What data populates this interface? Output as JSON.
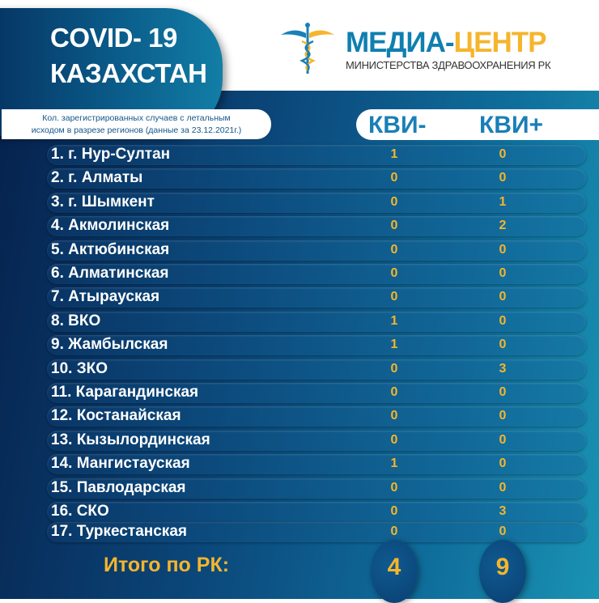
{
  "header": {
    "title_line1": "COVID- 19",
    "title_line2": "КАЗАХСТАН",
    "brand_part1": "МЕДИА-",
    "brand_part2": "ЦЕНТР",
    "brand_sub": "МИНИСТЕРСТВА ЗДРАВООХРАНЕНИЯ РК",
    "logo_icon": "caduceus-icon"
  },
  "note": {
    "line1": "Кол. зарегистрированных случаев с летальным",
    "line2": "исходом в разрезе регионов  (данные за 23.12.2021г.)"
  },
  "columns": {
    "kvi_minus": "КВИ-",
    "kvi_plus": "КВИ+"
  },
  "rows": [
    {
      "name": "1. г. Нур-Султан",
      "minus": "1",
      "plus": "0"
    },
    {
      "name": "2. г. Алматы",
      "minus": "0",
      "plus": "0"
    },
    {
      "name": "3. г. Шымкент",
      "minus": "0",
      "plus": "1"
    },
    {
      "name": "4. Акмолинская",
      "minus": "0",
      "plus": "2"
    },
    {
      "name": "5. Актюбинская",
      "minus": "0",
      "plus": "0"
    },
    {
      "name": "6. Алматинская",
      "minus": "0",
      "plus": "0"
    },
    {
      "name": "7. Атырауская",
      "minus": "0",
      "plus": "0"
    },
    {
      "name": "8. ВКО",
      "minus": "1",
      "plus": "0"
    },
    {
      "name": "9. Жамбылская",
      "minus": "1",
      "plus": "0"
    },
    {
      "name": "10. ЗКО",
      "minus": "0",
      "plus": "3"
    },
    {
      "name": "11. Карагандинская",
      "minus": "0",
      "plus": "0"
    },
    {
      "name": "12. Костанайская",
      "minus": "0",
      "plus": "0"
    },
    {
      "name": "13. Кызылординская",
      "minus": "0",
      "plus": "0"
    },
    {
      "name": "14. Мангистауская",
      "minus": "1",
      "plus": "0"
    },
    {
      "name": "15. Павлодарская",
      "minus": "0",
      "plus": "0"
    },
    {
      "name": "16. СКО",
      "minus": "0",
      "plus": "3"
    },
    {
      "name": "17. Туркестанская",
      "minus": "0",
      "plus": "0"
    }
  ],
  "total": {
    "label": "Итого по РК:",
    "minus": "4",
    "plus": "9"
  },
  "colors": {
    "accent": "#f5b52c",
    "brand_blue": "#0f7fb0"
  }
}
